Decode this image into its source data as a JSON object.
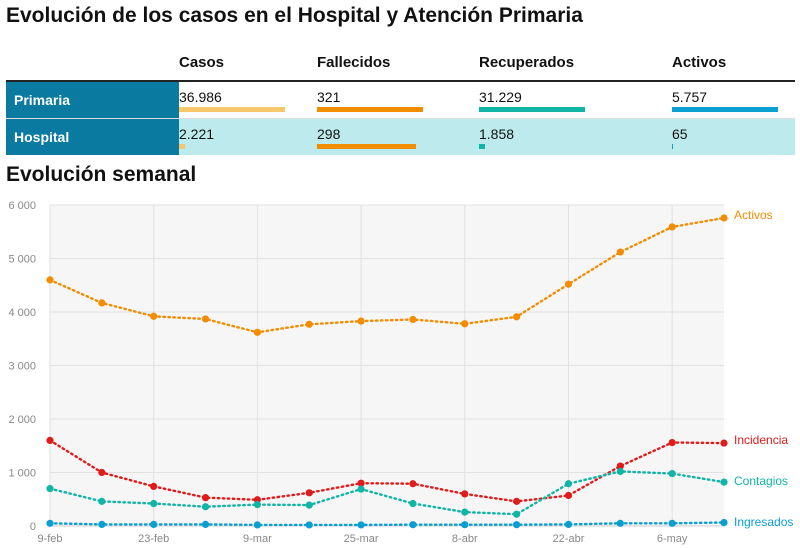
{
  "title": "Evolución de los casos en el Hospital y Atención Primaria",
  "subtitle": "Evolución semanal",
  "summary": {
    "columns": [
      "Casos",
      "Fallecidos",
      "Recuperados",
      "Activos"
    ],
    "colors": [
      "#f6c86b",
      "#f28c00",
      "#10b5a5",
      "#0a9ed1"
    ],
    "rows": [
      {
        "label": "Primaria",
        "values": [
          "36.986",
          "321",
          "31.229",
          "5.757"
        ],
        "fill": [
          1.0,
          1.0,
          1.0,
          1.0
        ]
      },
      {
        "label": "Hospital",
        "values": [
          "2.221",
          "298",
          "1.858",
          "65"
        ],
        "fill": [
          0.06,
          0.93,
          0.06,
          0.011
        ]
      }
    ]
  },
  "chart_data": {
    "type": "line",
    "x": [
      "9-feb",
      "16-feb",
      "23-feb",
      "2-mar",
      "9-mar",
      "16-mar",
      "25-mar",
      "1-abr",
      "8-abr",
      "15-abr",
      "22-abr",
      "29-abr",
      "6-may",
      "13-may"
    ],
    "x_ticks": [
      "9-feb",
      "23-feb",
      "9-mar",
      "25-mar",
      "8-abr",
      "22-abr",
      "6-may"
    ],
    "y_ticks": [
      "0",
      "1 000",
      "2 000",
      "3 000",
      "4 000",
      "5 000",
      "6 000"
    ],
    "ylim": [
      0,
      6000
    ],
    "grid": true,
    "series": [
      {
        "name": "Activos",
        "color": "#f28c00",
        "values": [
          4600,
          4170,
          3920,
          3870,
          3620,
          3770,
          3830,
          3860,
          3780,
          3910,
          4520,
          5120,
          5590,
          5757
        ]
      },
      {
        "name": "Incidencia",
        "color": "#e01b1b",
        "values": [
          1600,
          1000,
          740,
          530,
          490,
          620,
          800,
          790,
          600,
          460,
          570,
          1120,
          1560,
          1550
        ]
      },
      {
        "name": "Contagios",
        "color": "#10b5a5",
        "values": [
          700,
          460,
          420,
          360,
          400,
          390,
          690,
          420,
          260,
          220,
          790,
          1020,
          980,
          820
        ]
      },
      {
        "name": "Ingresados",
        "color": "#0a9ed1",
        "values": [
          50,
          30,
          30,
          30,
          20,
          20,
          20,
          25,
          25,
          25,
          30,
          50,
          50,
          65
        ]
      }
    ]
  }
}
